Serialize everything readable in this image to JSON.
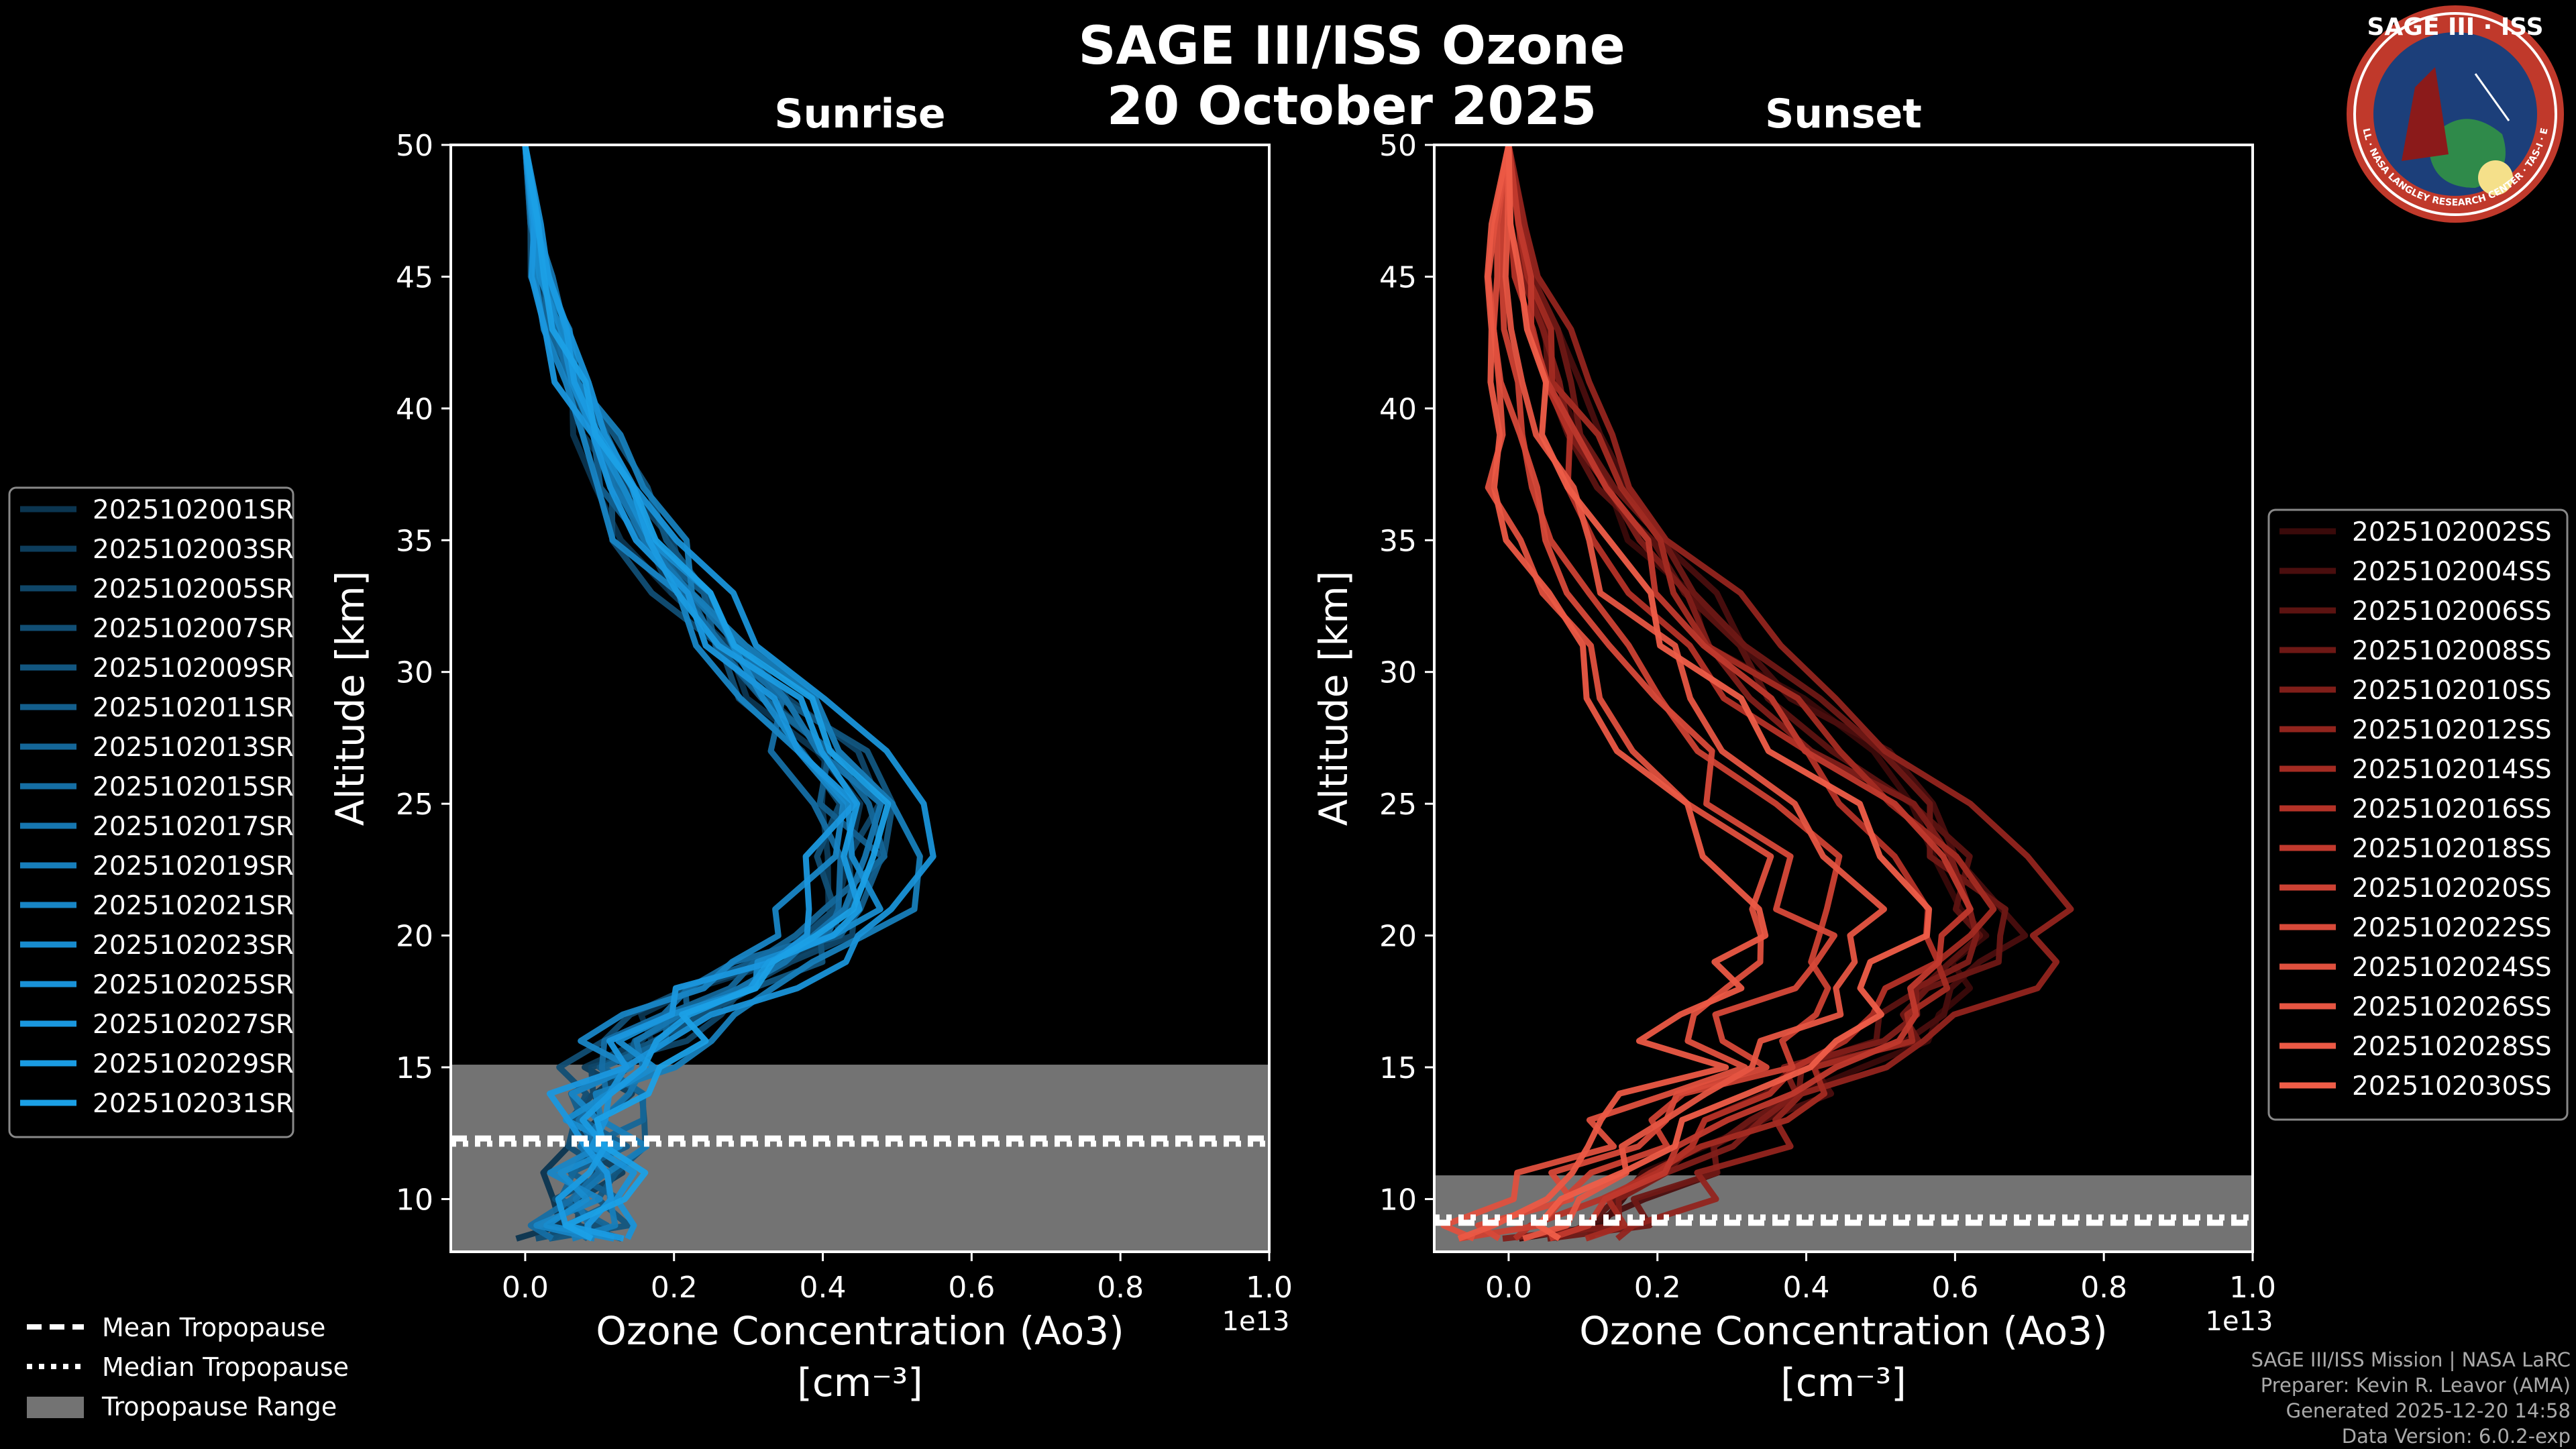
{
  "title_line1": "SAGE III/ISS Ozone",
  "title_line2": "20 October 2025",
  "logo": {
    "text_top": "SAGE III · ISS",
    "text_ring": "BALL · NASA LANGLEY RESEARCH CENTER · TAS-I · ESA",
    "colors": {
      "ring": "#c0392b",
      "inner": "#1c3f7a",
      "earth": "#2f8a4a"
    }
  },
  "footer": [
    "SAGE III/ISS Mission | NASA LaRC",
    "Preparer: Kevin R. Leavor (AMA)",
    "Generated 2025-12-20 14:58",
    "Data Version: 6.0.2-exp"
  ],
  "tropo_legend": {
    "mean": "Mean Tropopause",
    "median": "Median Tropopause",
    "range": "Tropopause Range"
  },
  "colors": {
    "sunrise": "#1a9be0",
    "sunset": "#ef5a47",
    "tropo_fill": "#737373"
  },
  "chart_data": [
    {
      "type": "line",
      "title": "Sunrise",
      "xlabel": "Ozone Concentration (Ao3)",
      "xunit": "[cm⁻³]",
      "ylabel": "Altitude [km]",
      "x_multiplier": "1e13",
      "xlim": [
        -0.1,
        1.0
      ],
      "ylim": [
        8,
        50
      ],
      "xticks": [
        "0.0",
        "0.2",
        "0.4",
        "0.6",
        "0.8",
        "1.0"
      ],
      "xtick_values": [
        0.0,
        0.2,
        0.4,
        0.6,
        0.8,
        1.0
      ],
      "yticks": [
        "10",
        "15",
        "20",
        "25",
        "30",
        "35",
        "40",
        "45",
        "50"
      ],
      "ytick_values": [
        10,
        15,
        20,
        25,
        30,
        35,
        40,
        45,
        50
      ],
      "tropopause": {
        "min": 8,
        "max": 15.1,
        "mean": 12.3,
        "median": 12.1
      },
      "altitudes": [
        50,
        47,
        45,
        43,
        41,
        39,
        37,
        35,
        33,
        31,
        29,
        27,
        25,
        23,
        21,
        20,
        19,
        18,
        17,
        16,
        15,
        14,
        13,
        12,
        11,
        10,
        9,
        8.5
      ],
      "base_profile": [
        0.0,
        0.01,
        0.02,
        0.035,
        0.06,
        0.09,
        0.12,
        0.16,
        0.21,
        0.26,
        0.32,
        0.38,
        0.43,
        0.44,
        0.42,
        0.38,
        0.32,
        0.25,
        0.19,
        0.15,
        0.12,
        0.1,
        0.09,
        0.08,
        0.08,
        0.07,
        0.06,
        0.06
      ],
      "series": [
        {
          "name": "2025102001SR",
          "color": "#0b3550",
          "offset": -0.02
        },
        {
          "name": "2025102003SR",
          "color": "#0d3d5c",
          "offset": 0.01
        },
        {
          "name": "2025102005SR",
          "color": "#0f4668",
          "offset": 0.03
        },
        {
          "name": "2025102007SR",
          "color": "#114e74",
          "offset": -0.03
        },
        {
          "name": "2025102009SR",
          "color": "#125680",
          "offset": 0.05
        },
        {
          "name": "2025102011SR",
          "color": "#135e8c",
          "offset": 0.0
        },
        {
          "name": "2025102013SR",
          "color": "#146698",
          "offset": 0.02
        },
        {
          "name": "2025102015SR",
          "color": "#156ea4",
          "offset": -0.01
        },
        {
          "name": "2025102017SR",
          "color": "#1676b0",
          "offset": 0.04
        },
        {
          "name": "2025102019SR",
          "color": "#177ebb",
          "offset": 0.06
        },
        {
          "name": "2025102021SR",
          "color": "#1885c5",
          "offset": -0.04
        },
        {
          "name": "2025102023SR",
          "color": "#188ccf",
          "offset": 0.02
        },
        {
          "name": "2025102025SR",
          "color": "#1992d8",
          "offset": 0.08
        },
        {
          "name": "2025102027SR",
          "color": "#1a97de",
          "offset": -0.02
        },
        {
          "name": "2025102029SR",
          "color": "#1a9be2",
          "offset": 0.03
        },
        {
          "name": "2025102031SR",
          "color": "#1ba0e6",
          "offset": 0.05
        }
      ]
    },
    {
      "type": "line",
      "title": "Sunset",
      "xlabel": "Ozone Concentration (Ao3)",
      "xunit": "[cm⁻³]",
      "ylabel": "Altitude [km]",
      "x_multiplier": "1e13",
      "xlim": [
        -0.1,
        1.0
      ],
      "ylim": [
        8,
        50
      ],
      "xticks": [
        "0.0",
        "0.2",
        "0.4",
        "0.6",
        "0.8",
        "1.0"
      ],
      "xtick_values": [
        0.0,
        0.2,
        0.4,
        0.6,
        0.8,
        1.0
      ],
      "yticks": [
        "10",
        "15",
        "20",
        "25",
        "30",
        "35",
        "40",
        "45",
        "50"
      ],
      "ytick_values": [
        10,
        15,
        20,
        25,
        30,
        35,
        40,
        45,
        50
      ],
      "tropopause": {
        "min": 8,
        "max": 10.9,
        "mean": 9.1,
        "median": 9.3
      },
      "altitudes": [
        50,
        47,
        45,
        43,
        41,
        39,
        37,
        35,
        33,
        31,
        29,
        27,
        25,
        23,
        21,
        20,
        19,
        18,
        17,
        16,
        15,
        14,
        13,
        12,
        11,
        10,
        9,
        8.5
      ],
      "base_profile": [
        0.0,
        0.01,
        0.02,
        0.04,
        0.06,
        0.09,
        0.12,
        0.16,
        0.21,
        0.27,
        0.34,
        0.42,
        0.5,
        0.56,
        0.6,
        0.6,
        0.58,
        0.55,
        0.52,
        0.48,
        0.42,
        0.36,
        0.3,
        0.25,
        0.2,
        0.15,
        0.1,
        0.05
      ],
      "series": [
        {
          "name": "2025102002SS",
          "color": "#3a0a0a",
          "offset": 0.04
        },
        {
          "name": "2025102004SS",
          "color": "#4a0e0e",
          "offset": 0.06
        },
        {
          "name": "2025102006SS",
          "color": "#5c1311",
          "offset": 0.02
        },
        {
          "name": "2025102008SS",
          "color": "#6e1815",
          "offset": 0.05
        },
        {
          "name": "2025102010SS",
          "color": "#801e19",
          "offset": 0.0
        },
        {
          "name": "2025102012SS",
          "color": "#92241d",
          "offset": 0.12
        },
        {
          "name": "2025102014SS",
          "color": "#a42b22",
          "offset": 0.03
        },
        {
          "name": "2025102016SS",
          "color": "#b43227",
          "offset": -0.04
        },
        {
          "name": "2025102018SS",
          "color": "#c1392d",
          "offset": 0.01
        },
        {
          "name": "2025102020SS",
          "color": "#cc4133",
          "offset": -0.14
        },
        {
          "name": "2025102022SS",
          "color": "#d74939",
          "offset": -0.2
        },
        {
          "name": "2025102024SS",
          "color": "#df503e",
          "offset": -0.24
        },
        {
          "name": "2025102026SS",
          "color": "#e65542",
          "offset": -0.1
        },
        {
          "name": "2025102028SS",
          "color": "#eb5945",
          "offset": -0.26
        },
        {
          "name": "2025102030SS",
          "color": "#ef5d48",
          "offset": -0.06
        }
      ]
    }
  ]
}
